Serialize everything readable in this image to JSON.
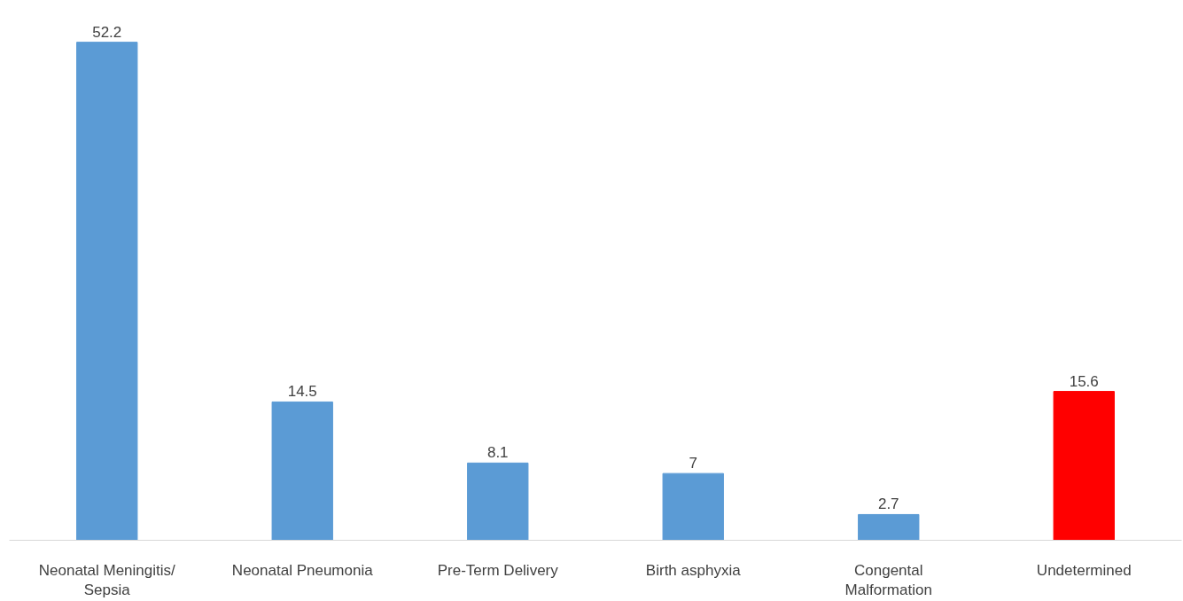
{
  "chart_data": {
    "type": "bar",
    "categories": [
      "Neonatal Meningitis/ Sepsia",
      "Neonatal Pneumonia",
      "Pre-Term Delivery",
      "Birth asphyxia",
      "Congental Malformation",
      "Undetermined"
    ],
    "values": [
      52.2,
      14.5,
      8.1,
      7,
      2.7,
      15.6
    ],
    "colors": [
      "#5b9bd5",
      "#5b9bd5",
      "#5b9bd5",
      "#5b9bd5",
      "#5b9bd5",
      "#ff0000"
    ],
    "data_labels": true,
    "grid": false
  }
}
